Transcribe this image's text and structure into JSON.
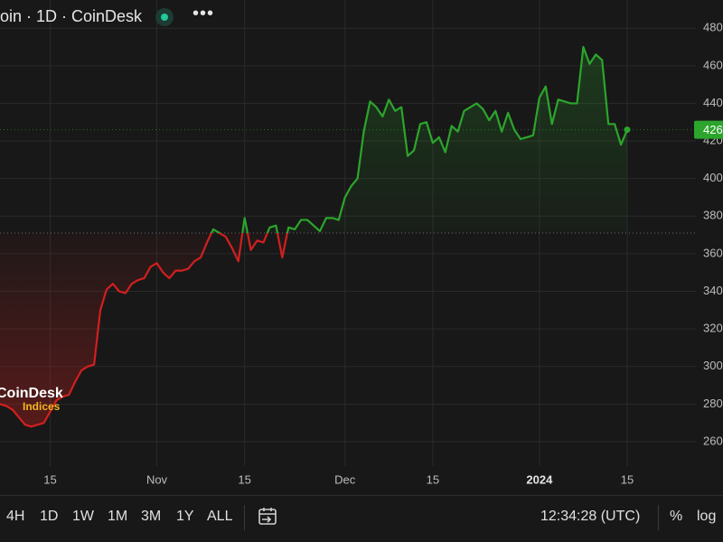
{
  "header": {
    "title": "oin · 1D · CoinDesk",
    "more": "•••"
  },
  "chart_data": {
    "type": "line",
    "categories": [
      null,
      null,
      null,
      null,
      null,
      null,
      null,
      null,
      "15",
      null,
      null,
      null,
      null,
      null,
      null,
      null,
      null,
      null,
      null,
      null,
      null,
      null,
      null,
      null,
      null,
      "Nov",
      null,
      null,
      null,
      null,
      null,
      null,
      null,
      null,
      null,
      null,
      null,
      null,
      null,
      "15",
      null,
      null,
      null,
      null,
      null,
      null,
      null,
      null,
      null,
      null,
      null,
      null,
      null,
      null,
      null,
      "Dec",
      null,
      null,
      null,
      null,
      null,
      null,
      null,
      null,
      null,
      null,
      null,
      null,
      null,
      "15",
      null,
      null,
      null,
      null,
      null,
      null,
      null,
      null,
      null,
      null,
      null,
      null,
      null,
      null,
      null,
      null,
      "2024",
      null,
      null,
      null,
      null,
      null,
      null,
      null,
      null,
      null,
      null,
      null,
      null,
      null,
      "15"
    ],
    "values": [
      280,
      279,
      277,
      273,
      269,
      268,
      269,
      270,
      276,
      282,
      284,
      285,
      292,
      298,
      300,
      301,
      330,
      341,
      344,
      340,
      339,
      344,
      346,
      347,
      353,
      355,
      350,
      347,
      351,
      351,
      352,
      356,
      358,
      366,
      373,
      371,
      369,
      363,
      356,
      379,
      362,
      367,
      366,
      374,
      375,
      358,
      374,
      373,
      378,
      378,
      375,
      372,
      379,
      379,
      378,
      390,
      396,
      400,
      425,
      441,
      438,
      433,
      442,
      436,
      438,
      412,
      415,
      429,
      430,
      419,
      422,
      414,
      428,
      425,
      436,
      438,
      440,
      437,
      431,
      436,
      425,
      435,
      426,
      421,
      422,
      423,
      443,
      449,
      429,
      442,
      441,
      440,
      440,
      470,
      461,
      466,
      463,
      429,
      429,
      418,
      426
    ],
    "up_color": "#2ca52c",
    "down_color": "#d21f1f",
    "baseline": 371,
    "ylim": [
      247,
      495
    ],
    "yticks": [
      260,
      280,
      300,
      320,
      340,
      360,
      380,
      400,
      420,
      440,
      460,
      480
    ],
    "grid": true,
    "watermark": {
      "title": "CoinDesk",
      "subtitle": "Indices"
    }
  },
  "toolbar": {
    "ranges": [
      "4H",
      "1D",
      "1W",
      "1M",
      "3M",
      "1Y",
      "ALL"
    ],
    "time": "12:34:28 (UTC)",
    "percent": "%",
    "log": "log"
  }
}
